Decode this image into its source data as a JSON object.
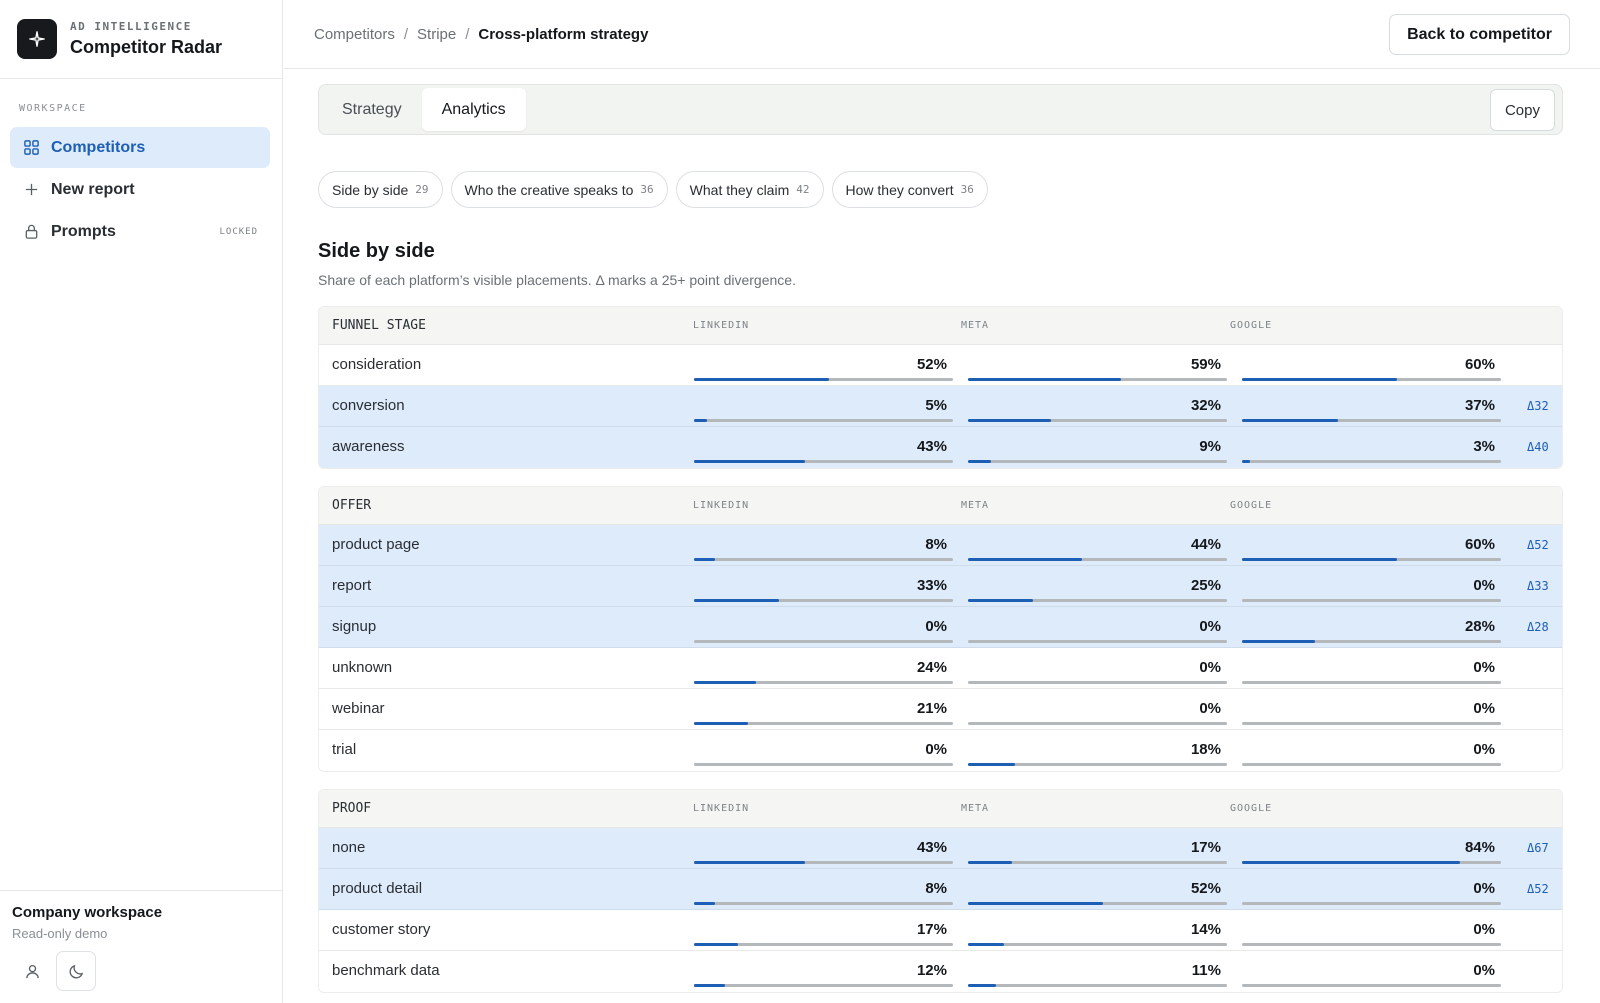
{
  "brand": {
    "eyebrow": "AD INTELLIGENCE",
    "name": "Competitor Radar",
    "logo_icon": "sparkle-icon"
  },
  "sidebar": {
    "section_label": "WORKSPACE",
    "items": [
      {
        "label": "Competitors",
        "icon": "grid-icon",
        "active": true,
        "badge": ""
      },
      {
        "label": "New report",
        "icon": "plus-icon",
        "active": false,
        "badge": ""
      },
      {
        "label": "Prompts",
        "icon": "lock-icon",
        "active": false,
        "badge": "LOCKED"
      }
    ],
    "footer": {
      "workspace_name": "Company workspace",
      "workspace_sub": "Read-only demo"
    }
  },
  "breadcrumb": {
    "items": [
      "Competitors",
      "Stripe"
    ],
    "separator": "/",
    "current": "Cross-platform strategy"
  },
  "header": {
    "back_label": "Back to competitor"
  },
  "tabs": {
    "items": [
      "Strategy",
      "Analytics"
    ],
    "active": "Analytics",
    "copy_label": "Copy"
  },
  "chips": [
    {
      "label": "Side by side",
      "count": "29"
    },
    {
      "label": "Who the creative speaks to",
      "count": "36"
    },
    {
      "label": "What they claim",
      "count": "42"
    },
    {
      "label": "How they convert",
      "count": "36"
    }
  ],
  "section": {
    "title": "Side by side",
    "subtitle": "Share of each platform’s visible placements. Δ marks a 25+ point divergence."
  },
  "platforms": [
    "LINKEDIN",
    "META",
    "GOOGLE"
  ],
  "colors": {
    "accent": "#1d5fb4",
    "divergence_row": "#deebfb",
    "track": "#b5b8bb"
  },
  "groups": [
    {
      "name": "FUNNEL STAGE",
      "rows": [
        {
          "label": "consideration",
          "linkedin": "52%",
          "meta": "59%",
          "google": "60%",
          "delta": ""
        },
        {
          "label": "conversion",
          "linkedin": "5%",
          "meta": "32%",
          "google": "37%",
          "delta": "Δ32"
        },
        {
          "label": "awareness",
          "linkedin": "43%",
          "meta": "9%",
          "google": "3%",
          "delta": "Δ40"
        }
      ]
    },
    {
      "name": "OFFER",
      "rows": [
        {
          "label": "product page",
          "linkedin": "8%",
          "meta": "44%",
          "google": "60%",
          "delta": "Δ52"
        },
        {
          "label": "report",
          "linkedin": "33%",
          "meta": "25%",
          "google": "0%",
          "delta": "Δ33"
        },
        {
          "label": "signup",
          "linkedin": "0%",
          "meta": "0%",
          "google": "28%",
          "delta": "Δ28"
        },
        {
          "label": "unknown",
          "linkedin": "24%",
          "meta": "0%",
          "google": "0%",
          "delta": ""
        },
        {
          "label": "webinar",
          "linkedin": "21%",
          "meta": "0%",
          "google": "0%",
          "delta": ""
        },
        {
          "label": "trial",
          "linkedin": "0%",
          "meta": "18%",
          "google": "0%",
          "delta": ""
        }
      ]
    },
    {
      "name": "PROOF",
      "rows": [
        {
          "label": "none",
          "linkedin": "43%",
          "meta": "17%",
          "google": "84%",
          "delta": "Δ67"
        },
        {
          "label": "product detail",
          "linkedin": "8%",
          "meta": "52%",
          "google": "0%",
          "delta": "Δ52"
        },
        {
          "label": "customer story",
          "linkedin": "17%",
          "meta": "14%",
          "google": "0%",
          "delta": ""
        },
        {
          "label": "benchmark data",
          "linkedin": "12%",
          "meta": "11%",
          "google": "0%",
          "delta": ""
        }
      ]
    }
  ]
}
